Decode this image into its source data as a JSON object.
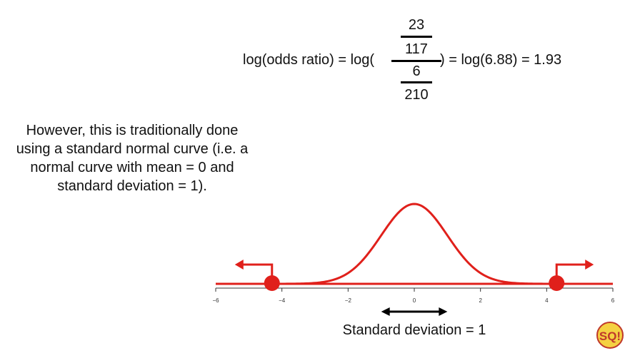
{
  "formula": {
    "lhs": "log(odds ratio) = log(",
    "top_num": "23",
    "top_den": "117",
    "bot_num": "6",
    "bot_den": "210",
    "rhs": ") = log(6.88) = 1.93"
  },
  "note": "However, this is traditionally done using a standard normal curve (i.e. a normal curve with mean = 0 and standard deviation = 1).",
  "sd_label": "Standard deviation = 1",
  "logo_text": "SQ!",
  "chart_data": {
    "type": "line",
    "title": "",
    "xlabel": "",
    "ylabel": "",
    "xlim": [
      -6,
      6
    ],
    "x_ticks": [
      "−6",
      "−4",
      "−2",
      "0",
      "2",
      "4",
      "6"
    ],
    "grid": false,
    "series": [
      {
        "kind": "standard-normal-density",
        "mean": 0,
        "sd": 1,
        "color": "#e0201b"
      }
    ],
    "markers": [
      {
        "x": -4.3,
        "direction": "left"
      },
      {
        "x": 4.3,
        "direction": "right"
      }
    ],
    "sd_arrow": {
      "from": -1,
      "to": 1
    },
    "colors": {
      "curve": "#e0201b",
      "arrow": "#000000"
    }
  }
}
